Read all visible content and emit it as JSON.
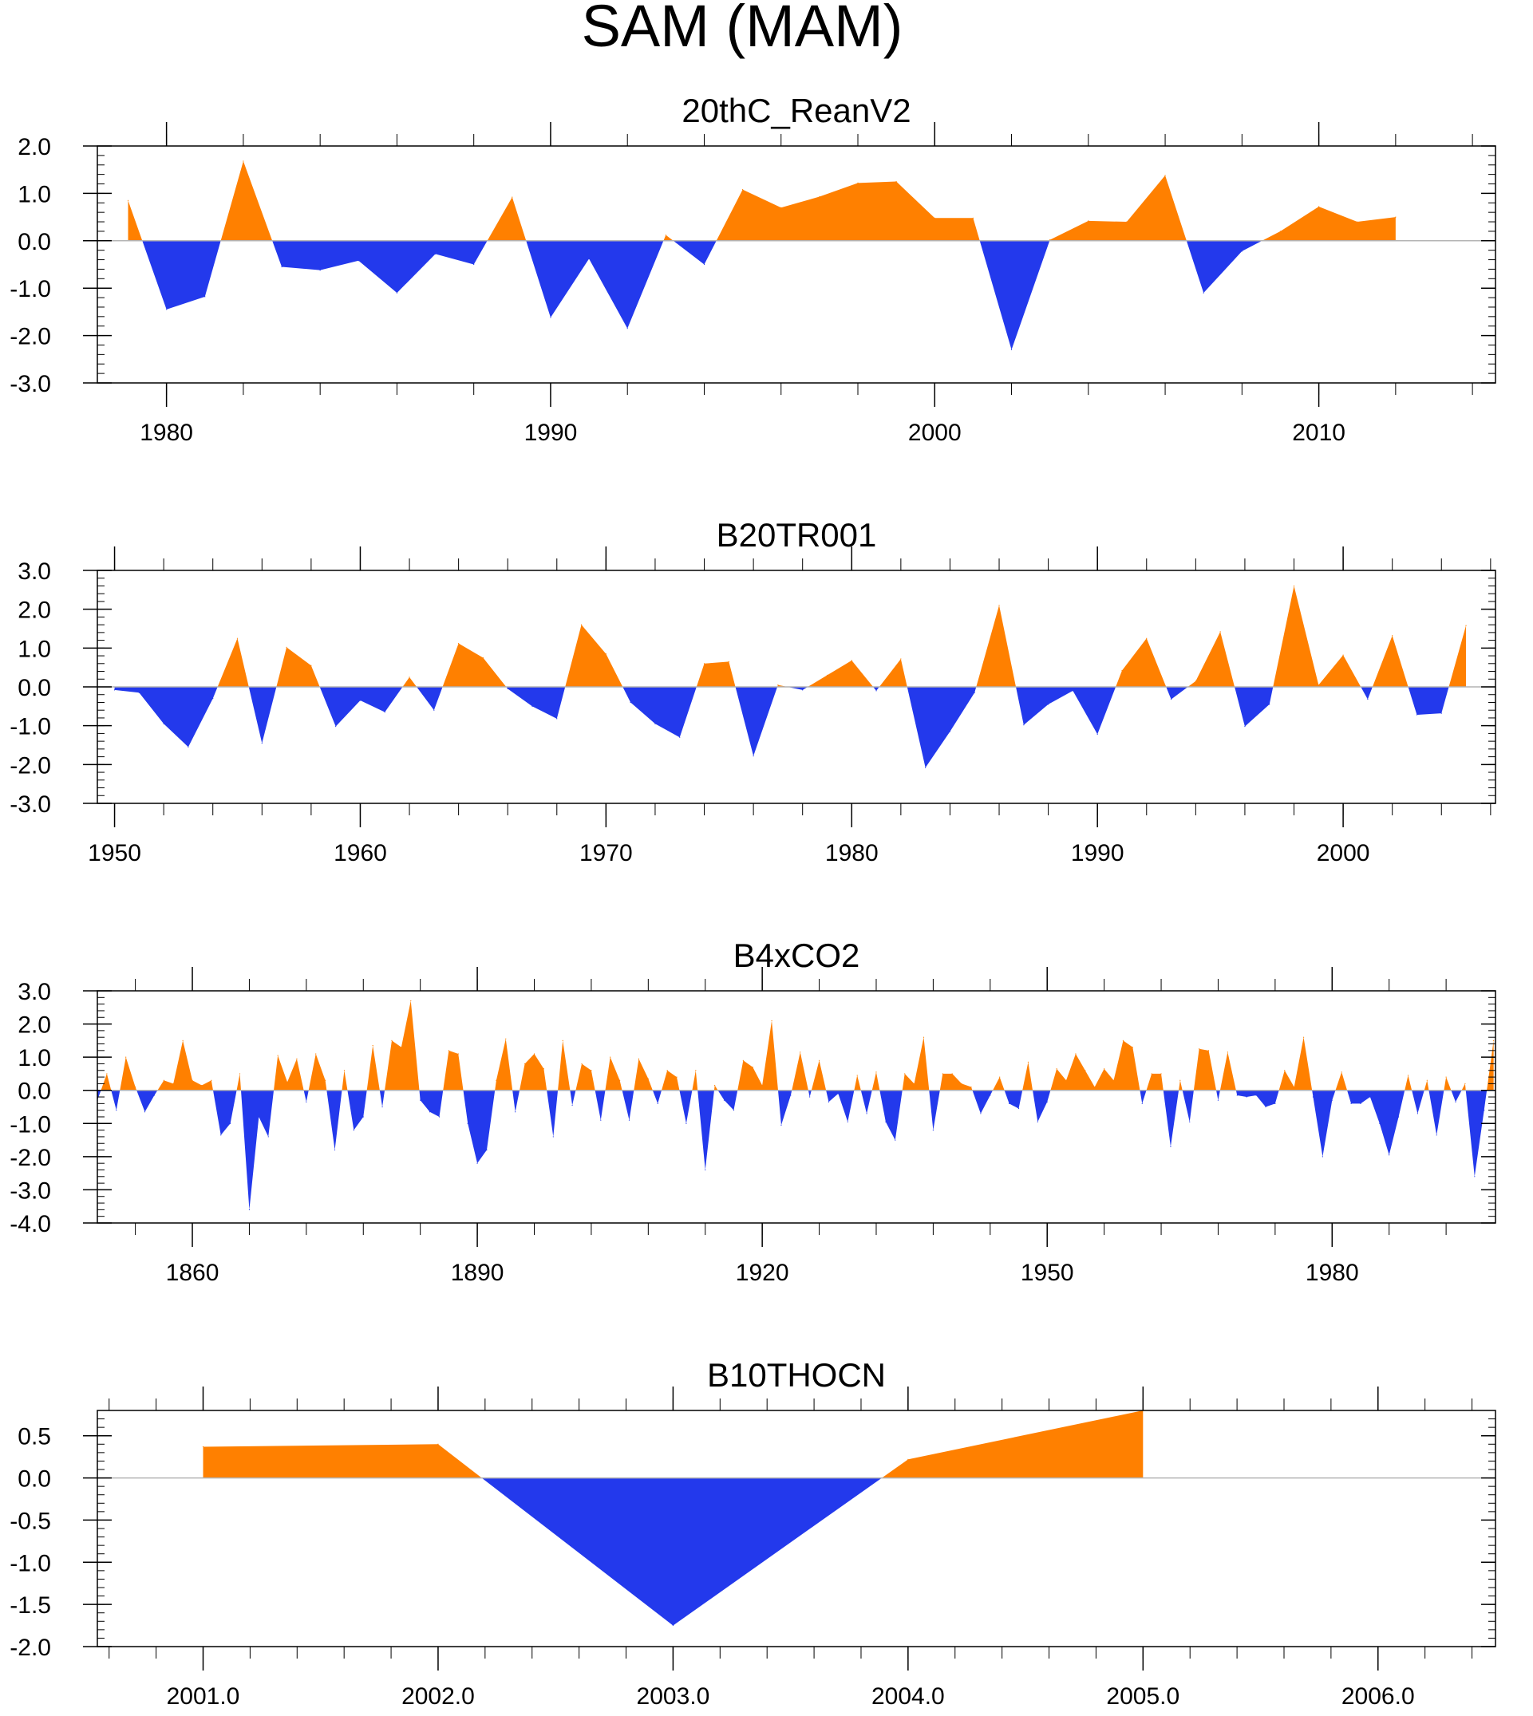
{
  "figure_title": "SAM (MAM)",
  "colors": {
    "positive": "#ff8000",
    "negative": "#2339ec",
    "axis": "#000000",
    "zero_line": "#b4b4b4"
  },
  "chart_data": [
    {
      "type": "area",
      "title": "20thC_ReanV2",
      "xlim": [
        1978.2,
        2014.6
      ],
      "ylim": [
        -3.0,
        2.0
      ],
      "yticks": [
        -3.0,
        -2.0,
        -1.0,
        0.0,
        1.0,
        2.0
      ],
      "ytick_labels": [
        "-3.0",
        "-2.0",
        "-1.0",
        "0.0",
        "1.0",
        "2.0"
      ],
      "ytick_minor_step": 0.2,
      "xticks": [
        1980,
        1990,
        2000,
        2010
      ],
      "xtick_labels": [
        "1980",
        "1990",
        "2000",
        "2010"
      ],
      "xtick_minor_step": 2,
      "x": [
        1979,
        1980,
        1981,
        1982,
        1983,
        1984,
        1985,
        1986,
        1987,
        1988,
        1989,
        1990,
        1991,
        1992,
        1993,
        1994,
        1995,
        1996,
        1997,
        1998,
        1999,
        2000,
        2001,
        2002,
        2003,
        2004,
        2005,
        2006,
        2007,
        2008,
        2009,
        2010,
        2011,
        2012
      ],
      "values": [
        0.85,
        -1.45,
        -1.18,
        1.68,
        -0.55,
        -0.62,
        -0.42,
        -1.1,
        -0.28,
        -0.5,
        0.92,
        -1.62,
        -0.38,
        -1.85,
        0.12,
        -0.5,
        1.08,
        0.7,
        0.93,
        1.22,
        1.25,
        0.48,
        0.48,
        -2.3,
        0.02,
        0.42,
        0.4,
        1.38,
        -1.1,
        -0.22,
        0.2,
        0.72,
        0.4,
        0.5
      ]
    },
    {
      "type": "area",
      "title": "B20TR001",
      "xlim": [
        1949.3,
        2006.2
      ],
      "ylim": [
        -3.0,
        3.0
      ],
      "yticks": [
        -3.0,
        -2.0,
        -1.0,
        0.0,
        1.0,
        2.0,
        3.0
      ],
      "ytick_labels": [
        "-3.0",
        "-2.0",
        "-1.0",
        "0.0",
        "1.0",
        "2.0",
        "3.0"
      ],
      "ytick_minor_step": 0.2,
      "xticks": [
        1950,
        1960,
        1970,
        1980,
        1990,
        2000
      ],
      "xtick_labels": [
        "1950",
        "1960",
        "1970",
        "1980",
        "1990",
        "2000"
      ],
      "xtick_minor_step": 2,
      "x": [
        1950,
        1951,
        1952,
        1953,
        1954,
        1955,
        1956,
        1957,
        1958,
        1959,
        1960,
        1961,
        1962,
        1963,
        1964,
        1965,
        1966,
        1967,
        1968,
        1969,
        1970,
        1971,
        1972,
        1973,
        1974,
        1975,
        1976,
        1977,
        1978,
        1979,
        1980,
        1981,
        1982,
        1983,
        1984,
        1985,
        1986,
        1987,
        1988,
        1989,
        1990,
        1991,
        1992,
        1993,
        1994,
        1995,
        1996,
        1997,
        1998,
        1999,
        2000,
        2001,
        2002,
        2003,
        2004,
        2005
      ],
      "values": [
        -0.08,
        -0.15,
        -0.95,
        -1.55,
        -0.3,
        1.25,
        -1.45,
        1.02,
        0.55,
        -1.02,
        -0.35,
        -0.65,
        0.25,
        -0.6,
        1.12,
        0.75,
        -0.05,
        -0.5,
        -0.82,
        1.6,
        0.85,
        -0.4,
        -0.95,
        -1.3,
        0.6,
        0.65,
        -1.78,
        0.05,
        -0.08,
        0.3,
        0.68,
        -0.1,
        0.72,
        -2.08,
        -1.15,
        -0.15,
        2.1,
        -0.98,
        -0.45,
        -0.1,
        -1.22,
        0.42,
        1.25,
        -0.32,
        0.15,
        1.42,
        -1.02,
        -0.45,
        2.6,
        0.05,
        0.82,
        -0.32,
        1.32,
        -0.72,
        -0.68,
        1.58
      ]
    },
    {
      "type": "area",
      "title": "B4xCO2",
      "xlim": [
        1850.0,
        1997.2
      ],
      "ylim": [
        -4.0,
        3.0
      ],
      "yticks": [
        -4.0,
        -3.0,
        -2.0,
        -1.0,
        0.0,
        1.0,
        2.0,
        3.0
      ],
      "ytick_labels": [
        "-4.0",
        "-3.0",
        "-2.0",
        "-1.0",
        "0.0",
        "1.0",
        "2.0",
        "3.0"
      ],
      "ytick_minor_step": 0.2,
      "xticks": [
        1860,
        1890,
        1920,
        1950,
        1980
      ],
      "xtick_labels": [
        "1860",
        "1890",
        "1920",
        "1950",
        "1980"
      ],
      "xtick_minor_step": 6,
      "x_start": 1850,
      "values": [
        -0.3,
        0.5,
        -0.6,
        1.0,
        0.1,
        -0.65,
        -0.15,
        0.3,
        0.2,
        1.5,
        0.3,
        0.15,
        0.3,
        -1.35,
        -1.0,
        0.5,
        -3.6,
        -0.8,
        -1.4,
        1.05,
        0.25,
        0.95,
        -0.35,
        1.1,
        0.3,
        -1.8,
        0.6,
        -1.2,
        -0.8,
        1.35,
        -0.5,
        1.5,
        1.3,
        2.7,
        -0.3,
        -0.65,
        -0.8,
        1.2,
        1.1,
        -1.0,
        -2.2,
        -1.8,
        0.3,
        1.55,
        -0.65,
        0.8,
        1.1,
        0.65,
        -1.4,
        1.5,
        -0.45,
        0.8,
        0.6,
        -0.9,
        1.0,
        0.3,
        -0.9,
        0.95,
        0.35,
        -0.4,
        0.6,
        0.4,
        -1.0,
        0.6,
        -2.4,
        0.15,
        -0.3,
        -0.6,
        0.9,
        0.7,
        0.15,
        2.1,
        -1.05,
        -0.15,
        1.15,
        -0.2,
        0.9,
        -0.35,
        -0.1,
        -0.95,
        0.45,
        -0.7,
        0.55,
        -0.95,
        -1.5,
        0.5,
        0.2,
        1.6,
        -1.2,
        0.5,
        0.5,
        0.2,
        0.1,
        -0.7,
        -0.15,
        0.4,
        -0.4,
        -0.55,
        0.85,
        -0.95,
        -0.35,
        0.65,
        0.3,
        1.1,
        0.6,
        0.1,
        0.65,
        0.3,
        1.5,
        1.3,
        -0.4,
        0.5,
        0.5,
        -1.7,
        0.3,
        -0.95,
        1.25,
        1.2,
        -0.3,
        1.15,
        -0.15,
        -0.2,
        -0.15,
        -0.5,
        -0.4,
        0.6,
        0.1,
        1.6,
        -0.2,
        -2.0,
        -0.3,
        0.55,
        -0.4,
        -0.4,
        -0.2,
        -1.0,
        -1.95,
        -0.8,
        0.45,
        -0.7,
        0.3,
        -1.35,
        0.4,
        -0.35,
        0.2,
        -2.6,
        -0.6,
        1.5
      ]
    },
    {
      "type": "area",
      "title": "B10THOCN",
      "xlim": [
        2000.55,
        2006.5
      ],
      "ylim": [
        -2.0,
        0.8
      ],
      "yticks": [
        -2.0,
        -1.5,
        -1.0,
        -0.5,
        0.0,
        0.5
      ],
      "ytick_labels": [
        "-2.0",
        "-1.5",
        "-1.0",
        "-0.5",
        "0.0",
        "0.5"
      ],
      "ytick_minor_step": 0.1,
      "xticks": [
        2001.0,
        2002.0,
        2003.0,
        2004.0,
        2005.0,
        2006.0
      ],
      "xtick_labels": [
        "2001.0",
        "2002.0",
        "2003.0",
        "2004.0",
        "2005.0",
        "2006.0"
      ],
      "xtick_minor_step": 0.2,
      "x": [
        2001,
        2002,
        2003,
        2004,
        2005
      ],
      "values": [
        0.37,
        0.4,
        -1.75,
        0.22,
        0.8
      ]
    }
  ]
}
